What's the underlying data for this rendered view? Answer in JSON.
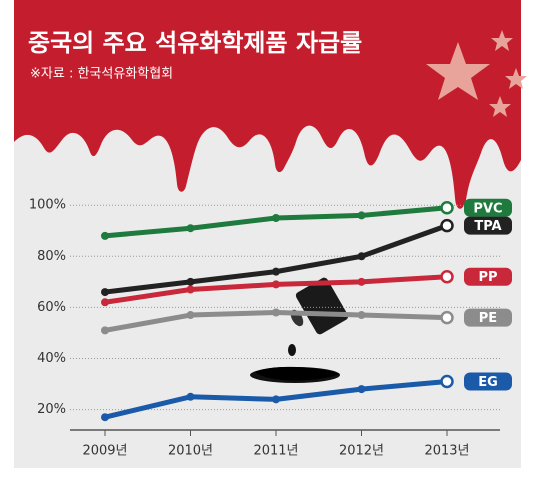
{
  "chart_data": {
    "type": "line",
    "title": "중국의 주요 석유화학제품 자급률",
    "subtitle": "※자료 : 한국석유화학협회",
    "categories": [
      "2009년",
      "2010년",
      "2011년",
      "2012년",
      "2013년"
    ],
    "series": [
      {
        "name": "PVC",
        "color": "#1f7a3e",
        "values": [
          88,
          91,
          95,
          96,
          99
        ]
      },
      {
        "name": "TPA",
        "color": "#222222",
        "values": [
          66,
          70,
          74,
          80,
          92
        ]
      },
      {
        "name": "PP",
        "color": "#c8283a",
        "values": [
          62,
          67,
          69,
          70,
          72
        ]
      },
      {
        "name": "PE",
        "color": "#8c8c8c",
        "values": [
          51,
          57,
          58,
          57,
          56
        ]
      },
      {
        "name": "EG",
        "color": "#1a5aa8",
        "values": [
          17,
          25,
          24,
          28,
          31
        ]
      }
    ],
    "ylim": [
      12,
      104
    ],
    "yticks": [
      {
        "value": 20,
        "label": "20%"
      },
      {
        "value": 40,
        "label": "40%"
      },
      {
        "value": 60,
        "label": "60%"
      },
      {
        "value": 80,
        "label": "80%"
      },
      {
        "value": 100,
        "label": "100%"
      }
    ],
    "grid": true
  }
}
